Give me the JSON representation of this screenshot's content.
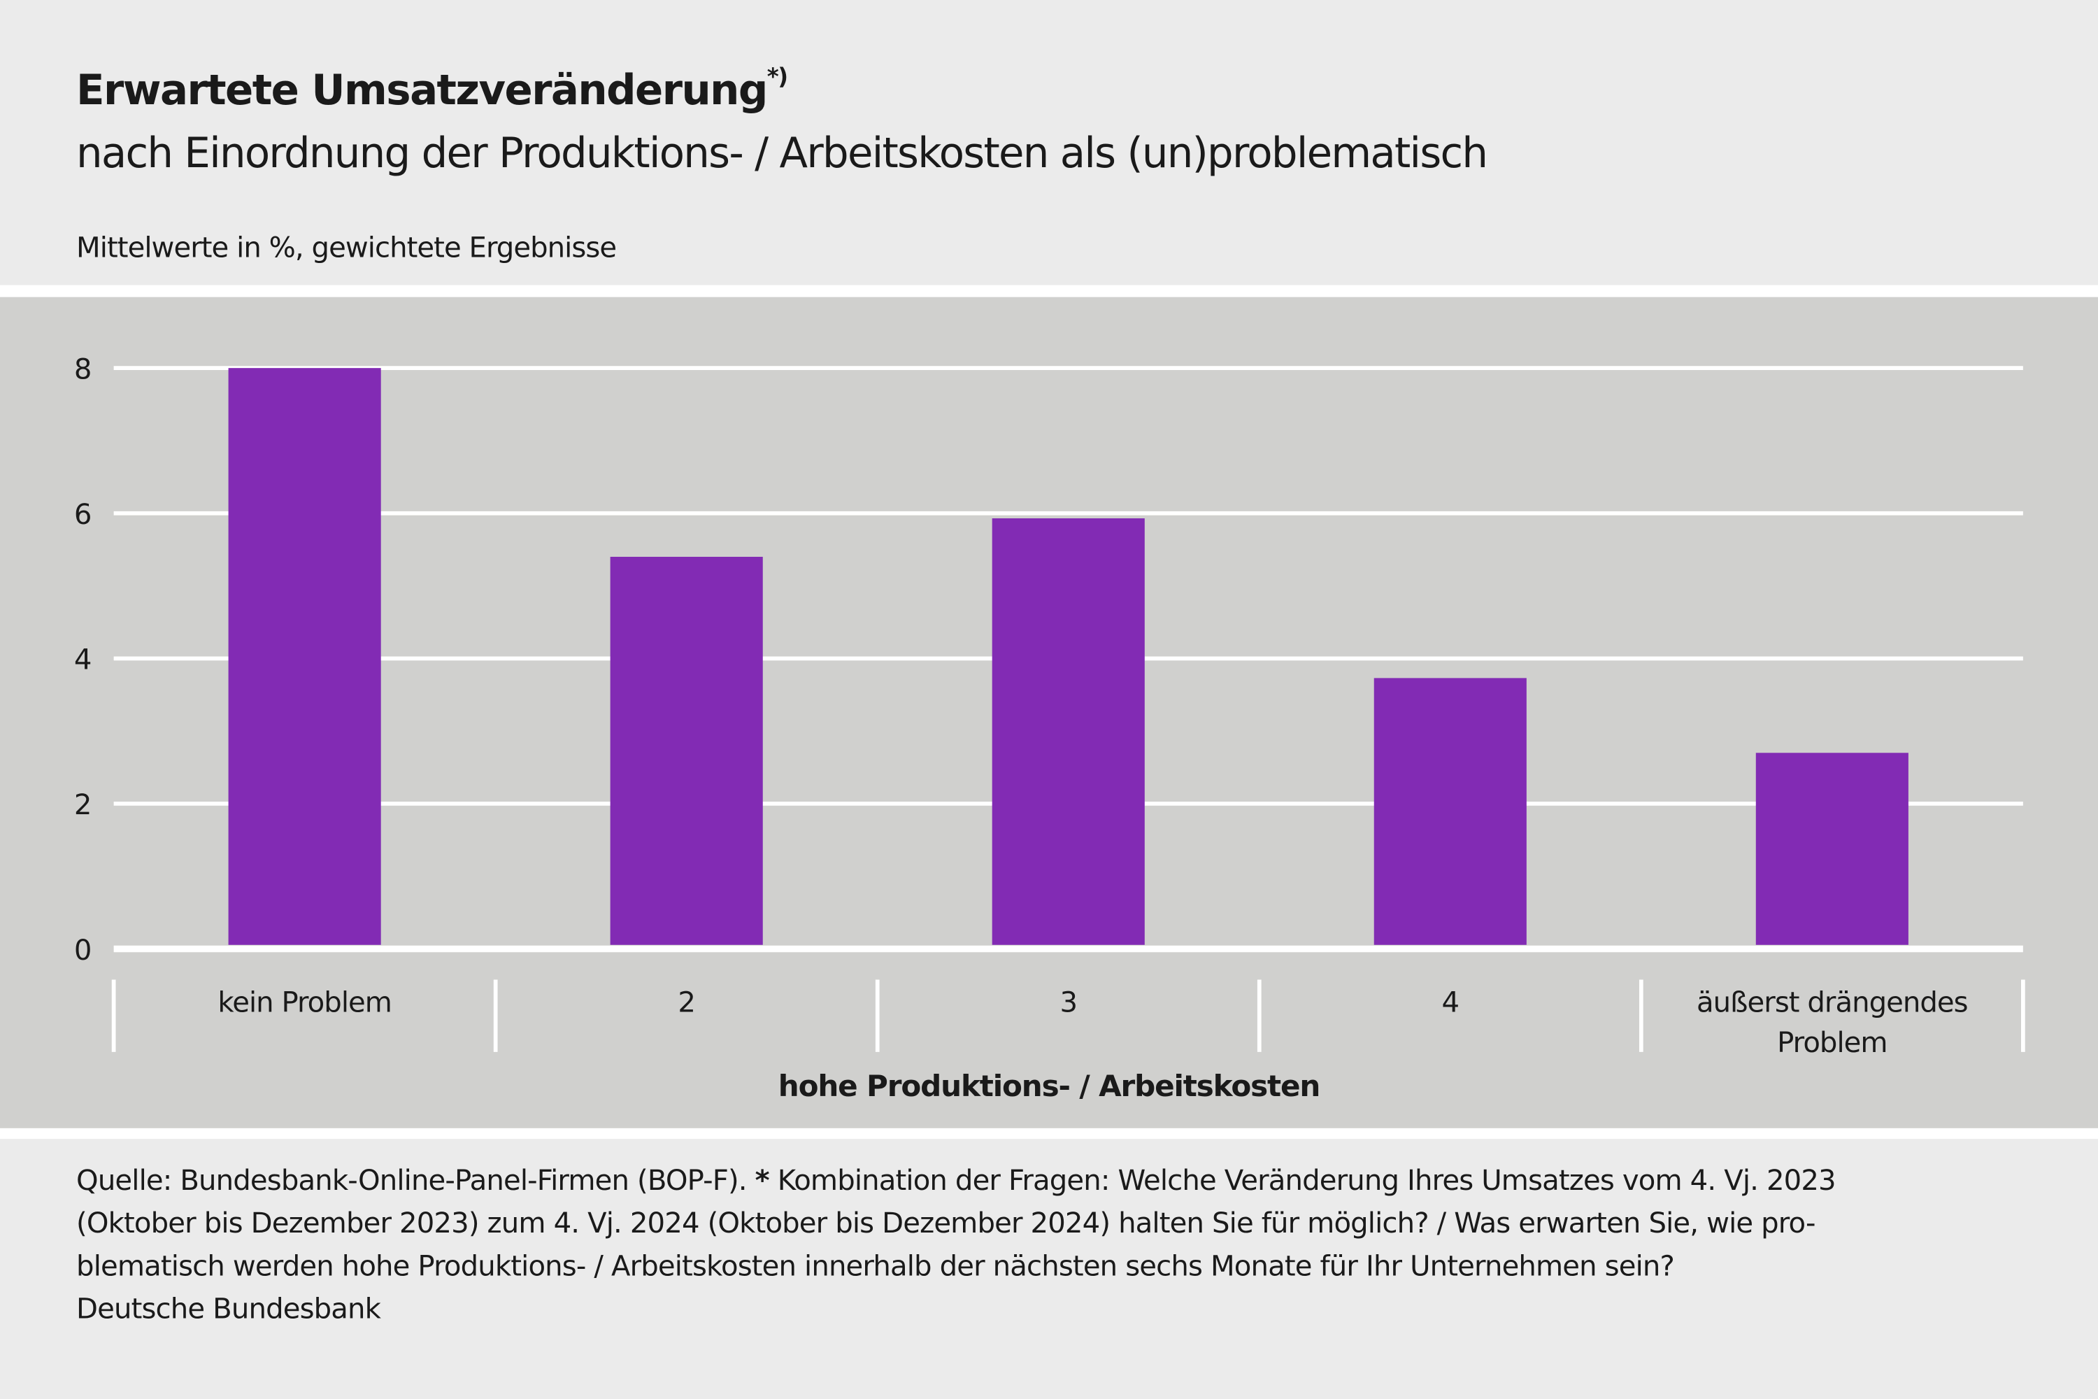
{
  "header": {
    "title": "Erwartete Umsatzveränderung",
    "title_marker": "*)",
    "subtitle": "nach Einordnung der Produktions- / Arbeitskosten als (un)problematisch",
    "unit": "Mittelwerte in %, gewichtete Ergebnisse"
  },
  "chart_data": {
    "type": "bar",
    "categories": [
      "kein Problem",
      "2",
      "3",
      "4",
      "äußerst drängendes Problem"
    ],
    "category_lines": [
      [
        "kein Problem"
      ],
      [
        "2"
      ],
      [
        "3"
      ],
      [
        "4"
      ],
      [
        "äußerst drängendes",
        "Problem"
      ]
    ],
    "values": [
      8.0,
      5.4,
      5.93,
      3.73,
      2.7
    ],
    "title": "Erwartete Umsatzveränderung",
    "xlabel": "hohe Produktions- / Arbeitskosten",
    "ylabel": "",
    "ylim": [
      0,
      8
    ],
    "yticks": [
      0,
      2,
      4,
      6,
      8
    ],
    "grid": true,
    "bar_color": "#822bb4",
    "background": "#d0d0ce"
  },
  "footer": {
    "source": "Quelle: Bundesbank-Online-Panel-Firmen (BOP-F).",
    "asterisk": "*",
    "line1_rest": " Kombination der Fragen: Welche Veränderung Ihres Umsatzes vom 4. Vj. 2023",
    "line2": "(Oktober bis Dezember 2023) zum 4. Vj. 2024 (Oktober bis Dezember 2024) halten Sie für möglich? / Was erwarten Sie, wie pro-",
    "line3": "blematisch werden hohe Produktions- / Arbeitskosten innerhalb der nächsten sechs Monate für Ihr Unternehmen sein?",
    "organization": "Deutsche Bundesbank"
  }
}
